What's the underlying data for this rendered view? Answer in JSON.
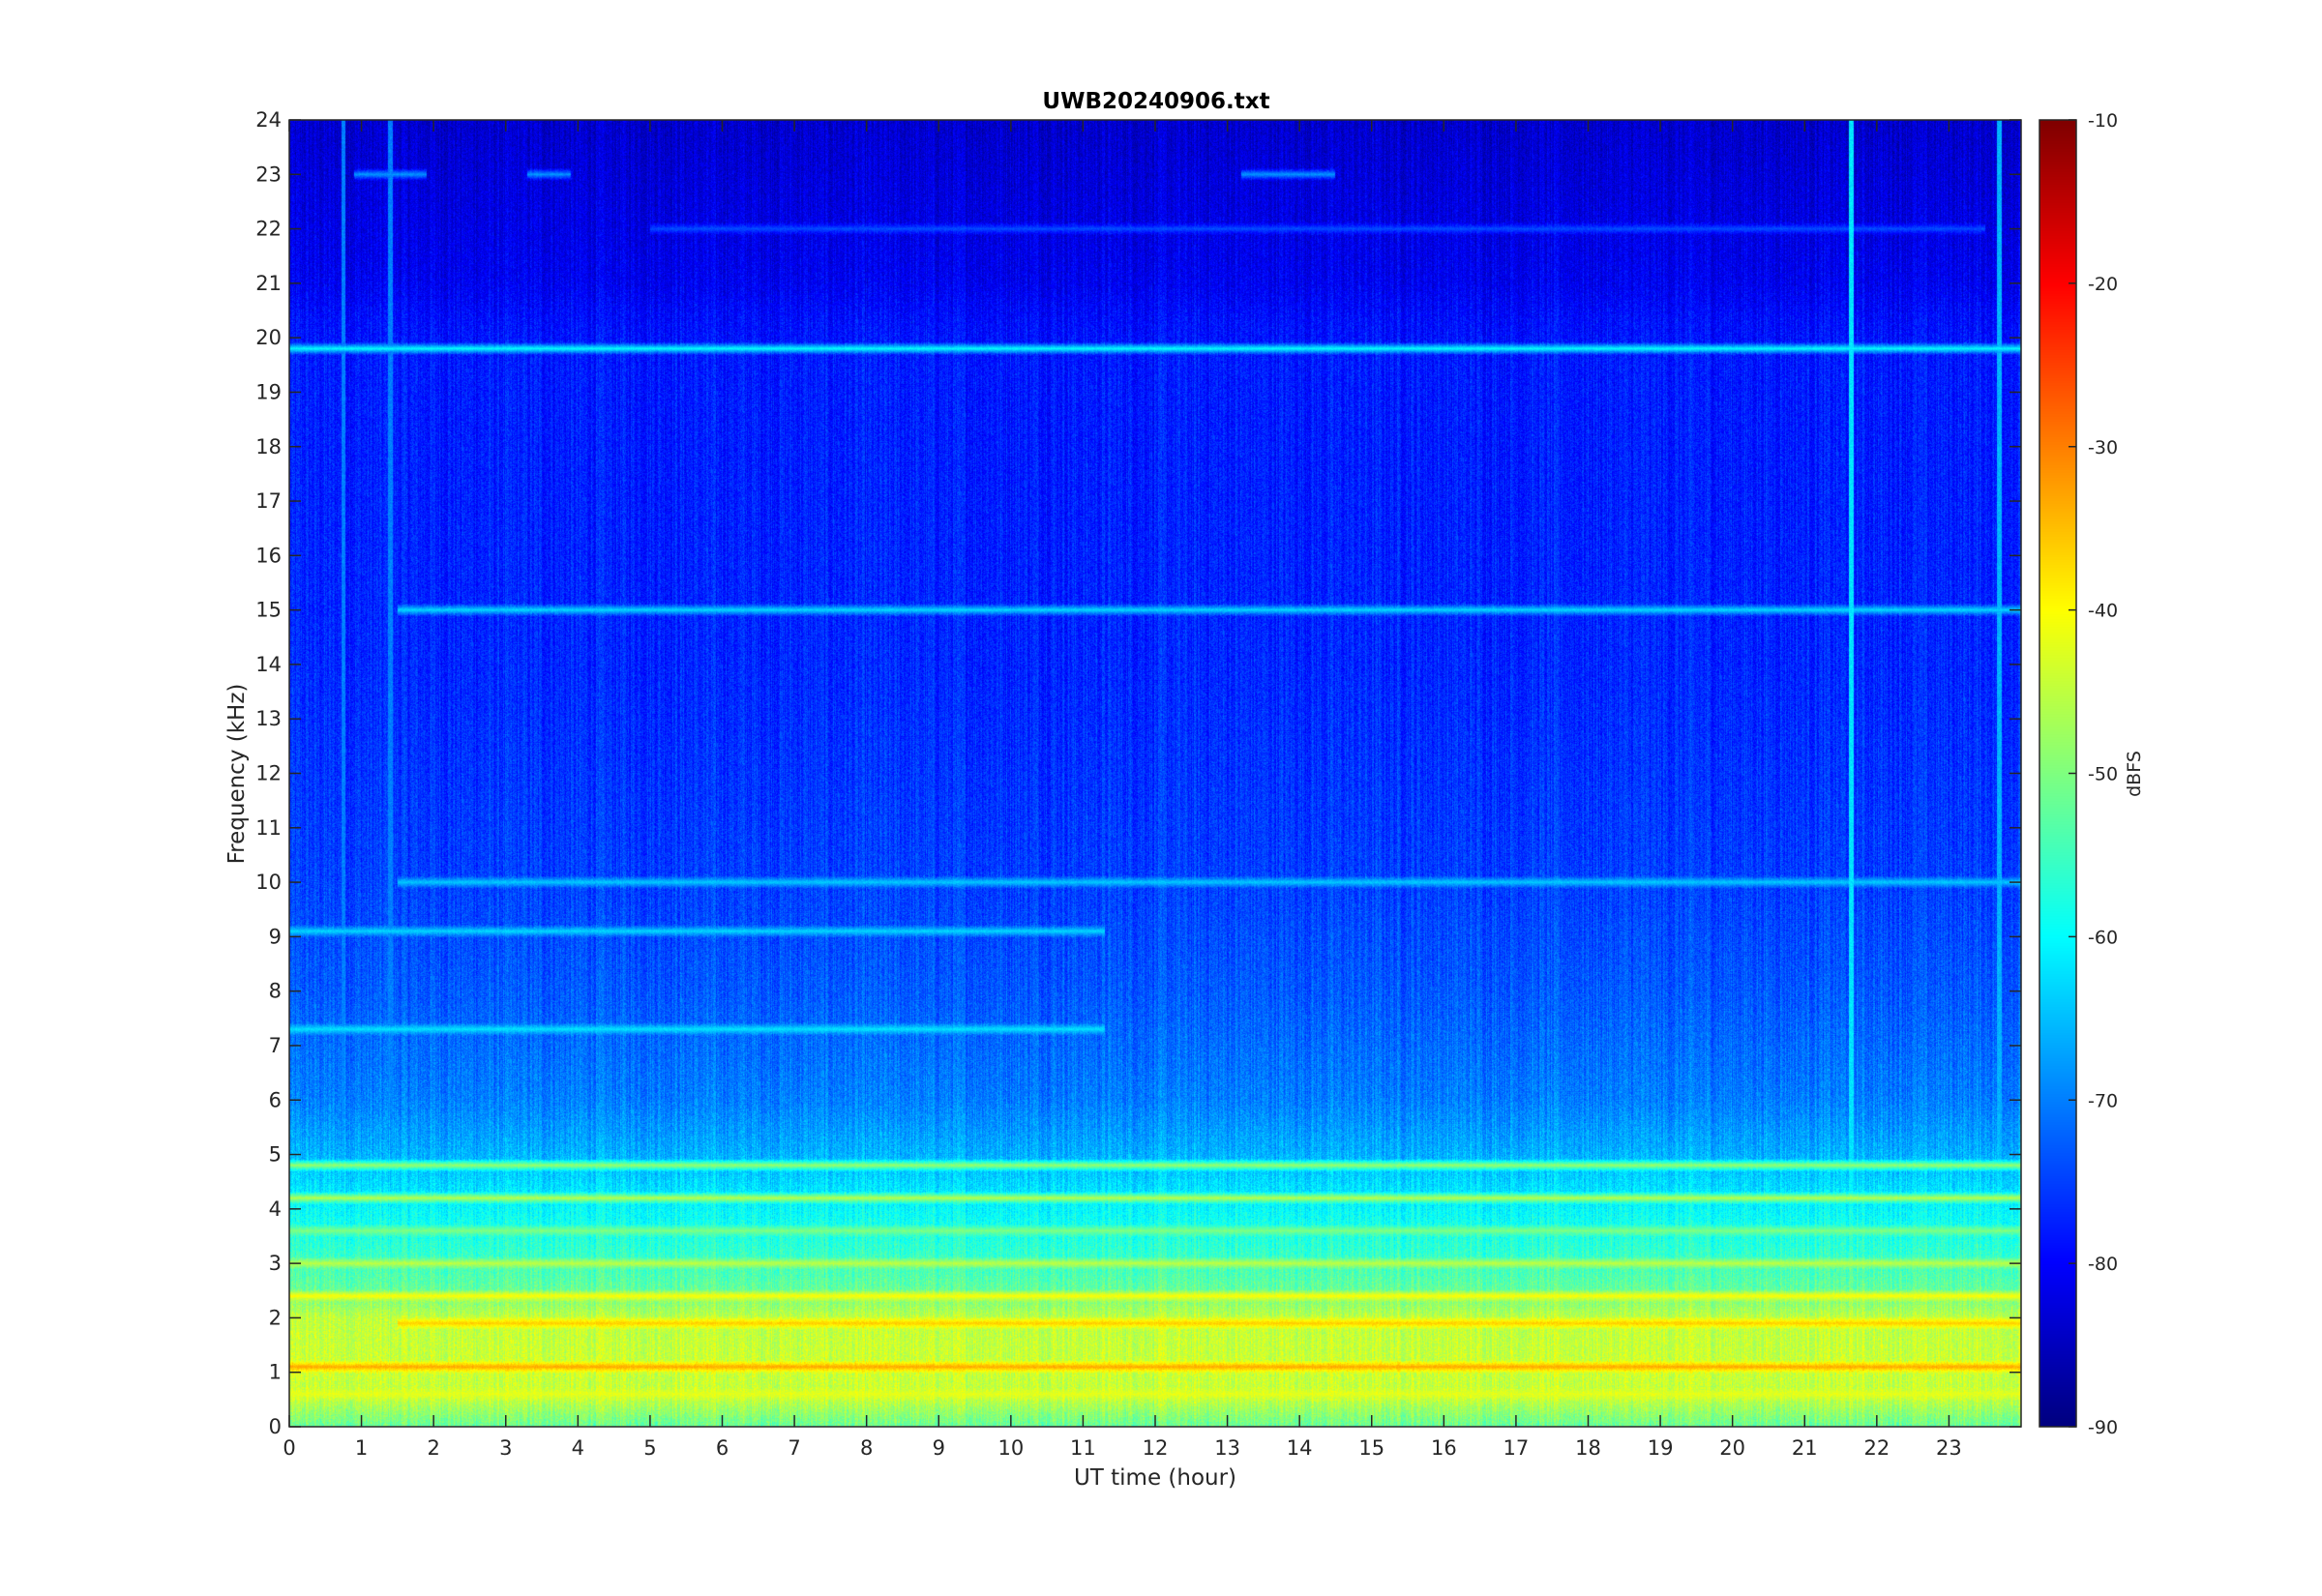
{
  "chart_data": {
    "type": "heatmap",
    "title": "UWB20240906.txt",
    "xlabel": "UT time (hour)",
    "ylabel": "Frequency (kHz)",
    "xlim": [
      0,
      24
    ],
    "ylim": [
      0,
      24
    ],
    "x_ticks": [
      "0",
      "1",
      "2",
      "3",
      "4",
      "5",
      "6",
      "7",
      "8",
      "9",
      "10",
      "11",
      "12",
      "13",
      "14",
      "15",
      "16",
      "17",
      "18",
      "19",
      "20",
      "21",
      "22",
      "23"
    ],
    "y_ticks": [
      "0",
      "1",
      "2",
      "3",
      "4",
      "5",
      "6",
      "7",
      "8",
      "9",
      "10",
      "11",
      "12",
      "13",
      "14",
      "15",
      "16",
      "17",
      "18",
      "19",
      "20",
      "21",
      "22",
      "23",
      "24"
    ],
    "colorbar": {
      "label": "dBFS",
      "range": [
        -90,
        -10
      ],
      "ticks": [
        "-90",
        "-80",
        "-70",
        "-60",
        "-50",
        "-40",
        "-30",
        "-20",
        "-10"
      ],
      "colormap": "jet"
    },
    "background_dbfs_profile": [
      {
        "f_khz": 0.0,
        "dbfs": -52
      },
      {
        "f_khz": 0.5,
        "dbfs": -45
      },
      {
        "f_khz": 1.0,
        "dbfs": -44
      },
      {
        "f_khz": 2.0,
        "dbfs": -45
      },
      {
        "f_khz": 2.5,
        "dbfs": -52
      },
      {
        "f_khz": 3.0,
        "dbfs": -55
      },
      {
        "f_khz": 4.0,
        "dbfs": -60
      },
      {
        "f_khz": 5.0,
        "dbfs": -66
      },
      {
        "f_khz": 6.0,
        "dbfs": -70
      },
      {
        "f_khz": 8.0,
        "dbfs": -73
      },
      {
        "f_khz": 10.0,
        "dbfs": -75
      },
      {
        "f_khz": 14.0,
        "dbfs": -77
      },
      {
        "f_khz": 19.5,
        "dbfs": -78
      },
      {
        "f_khz": 20.3,
        "dbfs": -79
      },
      {
        "f_khz": 21.0,
        "dbfs": -81
      },
      {
        "f_khz": 24.0,
        "dbfs": -84
      }
    ],
    "narrowband_lines": [
      {
        "f_khz": 19.8,
        "dbfs": -60,
        "t_start": 0,
        "t_end": 24
      },
      {
        "f_khz": 1.1,
        "dbfs": -33,
        "t_start": 0,
        "t_end": 24
      },
      {
        "f_khz": 1.9,
        "dbfs": -36,
        "t_start": 1.5,
        "t_end": 24
      },
      {
        "f_khz": 2.4,
        "dbfs": -40,
        "t_start": 0,
        "t_end": 24
      },
      {
        "f_khz": 0.6,
        "dbfs": -42,
        "t_start": 0,
        "t_end": 24
      },
      {
        "f_khz": 3.0,
        "dbfs": -45,
        "t_start": 0,
        "t_end": 24
      },
      {
        "f_khz": 3.6,
        "dbfs": -50,
        "t_start": 0,
        "t_end": 24
      },
      {
        "f_khz": 4.2,
        "dbfs": -46,
        "t_start": 0,
        "t_end": 24
      },
      {
        "f_khz": 4.8,
        "dbfs": -48,
        "t_start": 0,
        "t_end": 24
      },
      {
        "f_khz": 7.3,
        "dbfs": -62,
        "t_start": 0,
        "t_end": 11.3
      },
      {
        "f_khz": 9.1,
        "dbfs": -63,
        "t_start": 0,
        "t_end": 11.3
      },
      {
        "f_khz": 10.0,
        "dbfs": -64,
        "t_start": 1.5,
        "t_end": 24
      },
      {
        "f_khz": 15.0,
        "dbfs": -63,
        "t_start": 1.5,
        "t_end": 24
      },
      {
        "f_khz": 22.0,
        "dbfs": -74,
        "t_start": 5,
        "t_end": 23.5
      },
      {
        "f_khz": 23.0,
        "dbfs": -68,
        "t_start": 0.9,
        "t_end": 1.9
      },
      {
        "f_khz": 23.0,
        "dbfs": -68,
        "t_start": 3.3,
        "t_end": 3.9
      },
      {
        "f_khz": 23.0,
        "dbfs": -68,
        "t_start": 13.2,
        "t_end": 14.5
      }
    ],
    "broadband_impulses": [
      {
        "t_hour": 0.75,
        "dbfs": -70
      },
      {
        "t_hour": 1.4,
        "dbfs": -70
      },
      {
        "t_hour": 21.65,
        "dbfs": -62
      },
      {
        "t_hour": 23.7,
        "dbfs": -66
      }
    ]
  }
}
